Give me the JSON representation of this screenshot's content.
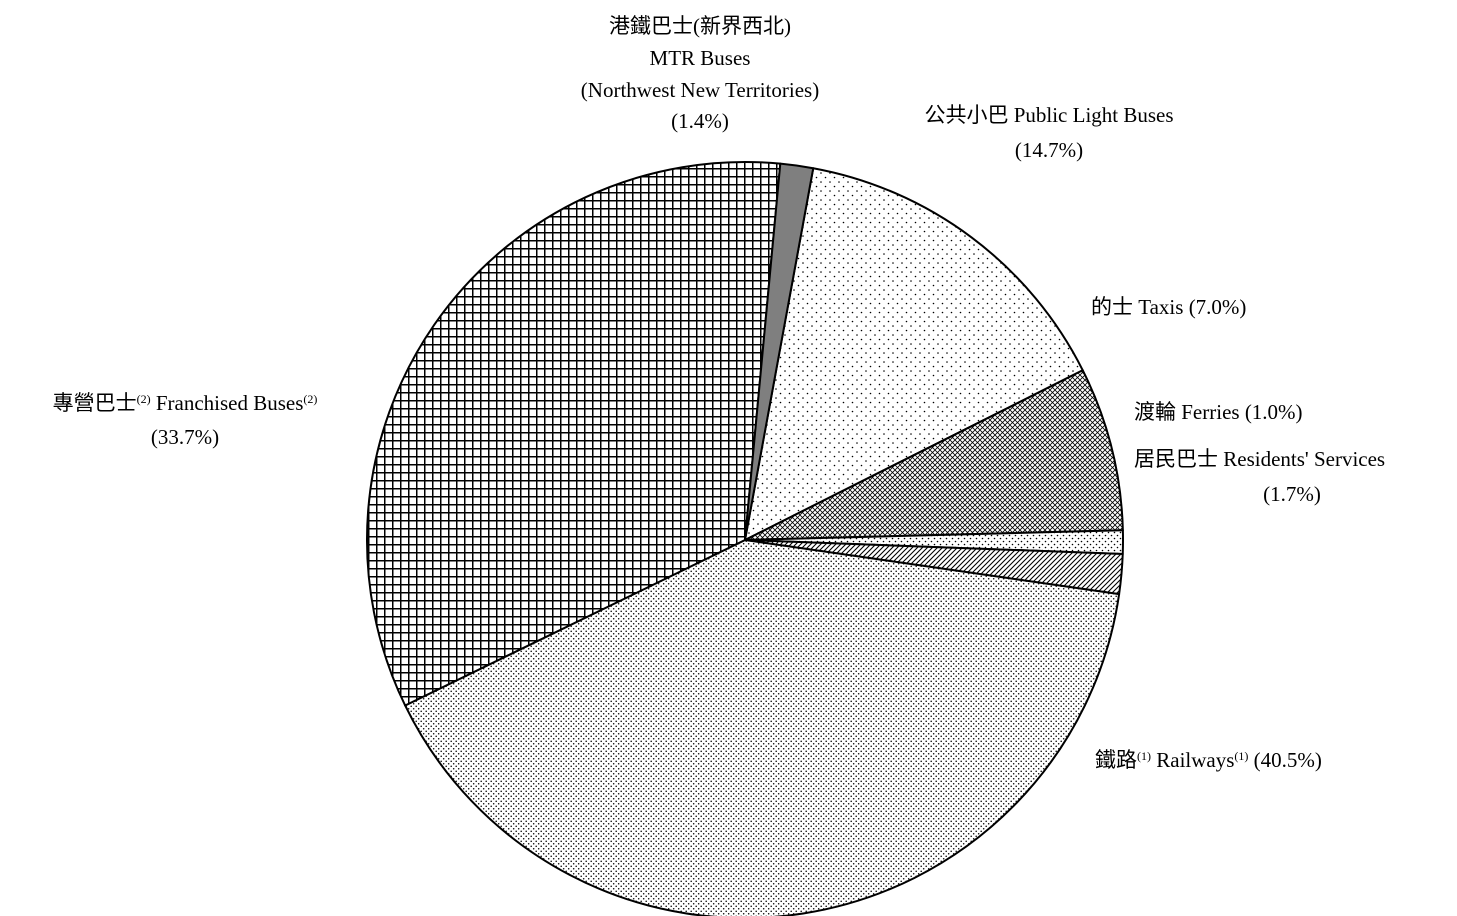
{
  "chart_data": {
    "type": "pie",
    "start_angle_deg": 10.4,
    "direction": "clockwise",
    "slices": [
      {
        "key": "public_light_buses",
        "zh": "公共小巴",
        "en": "Public Light Buses",
        "value": 14.7,
        "pct": "(14.7%)",
        "pattern": "sparse-dots"
      },
      {
        "key": "taxis",
        "zh": "的士",
        "en": "Taxis",
        "value": 7.0,
        "pct": "(7.0%)",
        "pattern": "crosshatch-fine"
      },
      {
        "key": "ferries",
        "zh": "渡輪",
        "en": "Ferries",
        "value": 1.0,
        "pct": "(1.0%)",
        "pattern": "small-dots"
      },
      {
        "key": "residents_services",
        "zh": "居民巴士",
        "en": "Residents' Services",
        "value": 1.7,
        "pct": "(1.7%)",
        "pattern": "diagonal"
      },
      {
        "key": "railways",
        "zh": "鐵路",
        "en": "Railways",
        "value": 40.5,
        "pct": "(40.5%)",
        "pattern": "dense-dots",
        "note": "(1)"
      },
      {
        "key": "franchised_buses",
        "zh": "專營巴士",
        "en": "Franchised Buses",
        "value": 33.7,
        "pct": "(33.7%)",
        "pattern": "grid",
        "note": "(2)"
      },
      {
        "key": "mtr_buses",
        "zh": "港鐵巴士(新界西北)",
        "en": "MTR Buses",
        "en2": "(Northwest New Territories)",
        "value": 1.4,
        "pct": "(1.4%)",
        "pattern": "solid-gray"
      }
    ]
  },
  "labels": {
    "public_light_buses": {
      "line1": "公共小巴 Public Light Buses",
      "line2": "(14.7%)"
    },
    "taxis": {
      "line1": "的士 Taxis (7.0%)"
    },
    "ferries": {
      "line1": "渡輪 Ferries (1.0%)"
    },
    "residents_services": {
      "line1": "居民巴士 Residents' Services",
      "line2": "(1.7%)"
    },
    "railways": {
      "zh": "鐵路",
      "sup1": "(1)",
      "en": " Railways",
      "sup2": "(1)",
      "pct": " (40.5%)"
    },
    "franchised_buses": {
      "zh": "專營巴士",
      "sup1": "(2)",
      "en": " Franchised Buses",
      "sup2": "(2)",
      "line2": "(33.7%)"
    },
    "mtr_buses": {
      "line1": "港鐵巴士(新界西北)",
      "line2": "MTR Buses",
      "line3": "(Northwest New Territories)",
      "line4": "(1.4%)"
    }
  }
}
